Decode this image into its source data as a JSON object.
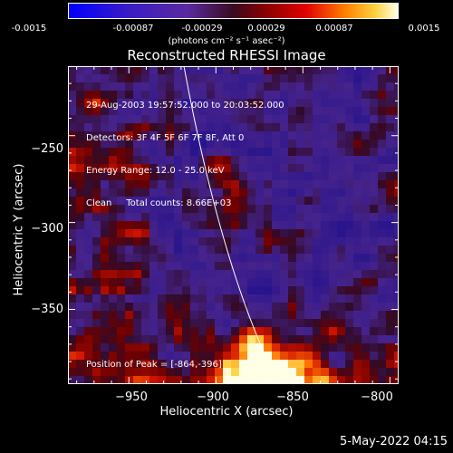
{
  "colorbar": {
    "ticks": [
      "-0.0015",
      "-0.00087",
      "-0.00029",
      "0.00029",
      "0.00087",
      "0.0015"
    ],
    "units": "(photons cm⁻² s⁻¹ asec⁻²)"
  },
  "chart_data": {
    "type": "heatmap",
    "title": "Reconstructed RHESSI Image",
    "xlabel": "Heliocentric X (arcsec)",
    "ylabel": "Heliocentric Y (arcsec)",
    "xlim": [
      -985,
      -795
    ],
    "ylim": [
      -393,
      -210
    ],
    "x_ticks": [
      -950,
      -900,
      -850,
      -800
    ],
    "x_tick_labels": [
      "−950",
      "−900",
      "−850",
      "−800"
    ],
    "y_ticks": [
      -250,
      -300,
      -350
    ],
    "y_tick_labels": [
      "−250",
      "−300",
      "−350"
    ],
    "color_range": [
      -0.0015,
      0.0015
    ],
    "peak": [
      -864,
      -396
    ],
    "info_lines": [
      "29-Aug-2003 19:57:52.000 to 20:03:52.000",
      "Detectors: 3F 4F 5F 6F 7F 8F, Att 0",
      "Energy Range: 12.0 - 25.0 keV",
      "Clean     Total counts: 8.66E+03"
    ],
    "peak_label": "Position of Peak = [-864,-396]"
  },
  "timestamp": "5-May-2022 04:15"
}
